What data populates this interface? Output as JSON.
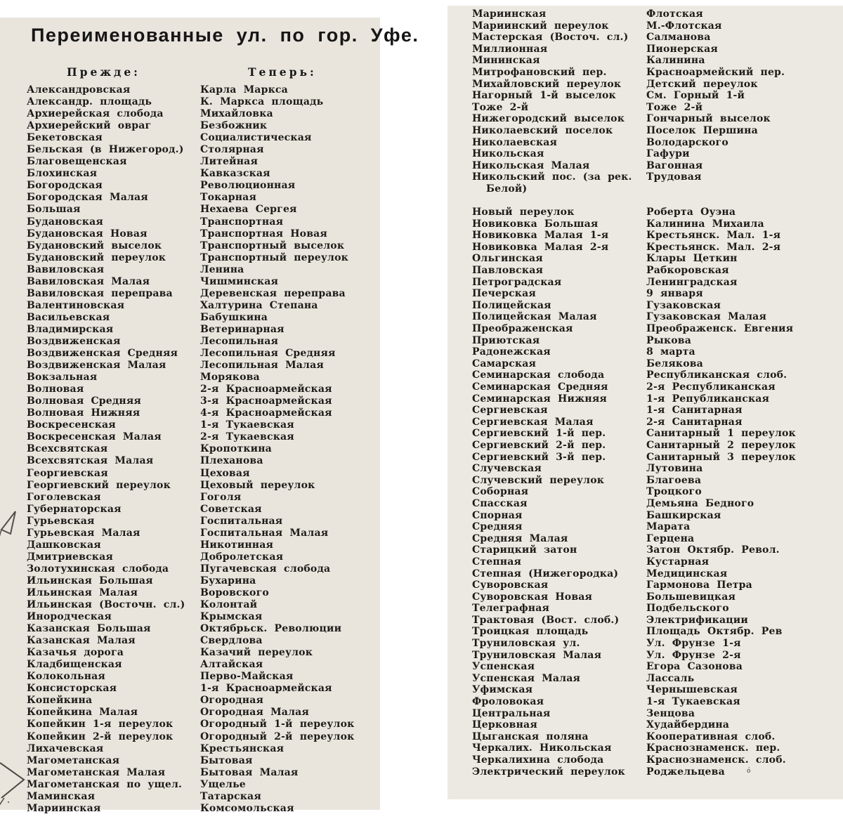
{
  "title": "Переименованные ул. по гор. Уфе.",
  "columns": {
    "before": "Прежде:",
    "after": "Теперь:"
  },
  "margin_marks": [
    "pencil-arrow-mark",
    "pencil-chevron-mark"
  ],
  "left_page_rows": [
    [
      "Александровская",
      "Карла Маркса"
    ],
    [
      "Александр. площадь",
      "К. Маркса площадь"
    ],
    [
      "Архиерейская слобода",
      "Михайловка"
    ],
    [
      "Архиерейский овраг",
      "Безбожник"
    ],
    [
      "Бекетовская",
      "Социалистическая"
    ],
    [
      "Бельская (в Нижегород.)",
      "Столярная"
    ],
    [
      "Благовещенская",
      "Литейная"
    ],
    [
      "Блохинская",
      "Кавказская"
    ],
    [
      "Богородская",
      "Революционная"
    ],
    [
      "Богородская Малая",
      "Токарная"
    ],
    [
      "Большая",
      "Нехаева Сергея"
    ],
    [
      "Будановская",
      "Транспортная"
    ],
    [
      "Будановская Новая",
      "Транспортная Новая"
    ],
    [
      "Будановский выселок",
      "Транспортный выселок"
    ],
    [
      "Будановский переулок",
      "Транспортный переулок"
    ],
    [
      "Вавиловская",
      "Ленина"
    ],
    [
      "Вавиловская Малая",
      "Чишминская"
    ],
    [
      "Вавиловская переправа",
      "Деревенская переправа"
    ],
    [
      "Валентиновская",
      "Халтурина Степана"
    ],
    [
      "Васильевская",
      "Бабушкина"
    ],
    [
      "Владимирская",
      "Ветеринарная"
    ],
    [
      "Воздвиженская",
      "Лесопильная"
    ],
    [
      "Воздвиженская Средняя",
      "Лесопильная Средняя"
    ],
    [
      "Воздвиженская Малая",
      "Лесопильная Малая"
    ],
    [
      "Вокзальная",
      "Морякова"
    ],
    [
      "Волновая",
      "2-я Красноармейская"
    ],
    [
      "Волновая Средняя",
      "3-я Красноармейская"
    ],
    [
      "Волновая Нижняя",
      "4-я Красноармейская"
    ],
    [
      "Воскресенская",
      "1-я Тукаевская"
    ],
    [
      "Воскресенская Малая",
      "2-я Тукаевская"
    ],
    [
      "Всехсвятская",
      "Кропоткина"
    ],
    [
      "Всехсвятская Малая",
      "Плеханова"
    ],
    [
      "Георгиевская",
      "Цеховая"
    ],
    [
      "Георгиевский переулок",
      "Цеховый переулок"
    ],
    [
      "Гоголевская",
      "Гоголя"
    ],
    [
      "Губернаторская",
      "Советская"
    ],
    [
      "Гурьевская",
      "Госпитальная"
    ],
    [
      "Гурьевская Малая",
      "Госпитальная Малая"
    ],
    [
      "Дашковская",
      "Никотинная"
    ],
    [
      "Дмитриевская",
      "Добролетская"
    ],
    [
      "Золотухинская слобода",
      "Пугачевская слобода"
    ],
    [
      "Ильинская Большая",
      "Бухарина"
    ],
    [
      "Ильинская Малая",
      "Воровского"
    ],
    [
      "Ильинская (Восточн. сл.)",
      "Колонтай"
    ],
    [
      "Инородческая",
      "Крымская"
    ],
    [
      "Казанская Большая",
      "Октябрьск. Революции"
    ],
    [
      "Казанская Малая",
      "Свердлова"
    ],
    [
      "Казачья дорога",
      "Казачий переулок"
    ],
    [
      "Кладбищенская",
      "Алтайская"
    ],
    [
      "Колокольная",
      "Перво-Майская"
    ],
    [
      "Консисторская",
      "1-я Красноармейская"
    ],
    [
      "Копейкина",
      "Огородная"
    ],
    [
      "Копейкина Малая",
      "Огородная Малая"
    ],
    [
      "Копейкин 1-я переулок",
      "Огородный 1-й переулок"
    ],
    [
      "Копейкин 2-й переулок",
      "Огородный 2-й переулок"
    ],
    [
      "Лихачевская",
      "Крестьянская"
    ],
    [
      "Магометанская",
      "Бытовая"
    ],
    [
      "Магометанская Малая",
      "Бытовая Малая"
    ],
    [
      "Магометанская по ущел.",
      "Ущелье"
    ],
    [
      "Маминская",
      "Татарская"
    ],
    [
      "Мариинская",
      "Комсомольская"
    ]
  ],
  "right_page_rows": [
    [
      "Мариинская",
      "Флотская"
    ],
    [
      "Мариинский переулок",
      "М.-Флотская"
    ],
    [
      "Мастерская (Восточ. сл.)",
      "Салманова"
    ],
    [
      "Миллионная",
      "Пионерская"
    ],
    [
      "Мининская",
      "Калинина"
    ],
    [
      "Митрофановский пер.",
      "Красноармейский пер."
    ],
    [
      "Михайловский переулок",
      "Детский переулок"
    ],
    [
      "Нагорный 1-й выселок",
      "См. Горный 1-й"
    ],
    [
      "Тоже 2-й",
      "Тоже 2-й"
    ],
    [
      "Нижегородский выселок",
      "Гончарный выселок"
    ],
    [
      "Николаевский поселок",
      "Поселок Першина"
    ],
    [
      "Николаевская",
      "Володарского"
    ],
    [
      "Никольская",
      "Гафури"
    ],
    [
      "Никольская Малая",
      "Вагонная"
    ],
    [
      "Никольский пос. (за рек.",
      "Трудовая"
    ],
    [
      "Белой)",
      "",
      "indent"
    ],
    [
      "",
      "",
      "spacer"
    ],
    [
      "Новый переулок",
      "Роберта Оуэна"
    ],
    [
      "Новиковка Большая",
      "Калинина Михаила"
    ],
    [
      "Новиковка Малая 1-я",
      "Крестьянск. Мал. 1-я"
    ],
    [
      "Новиковка Малая 2-я",
      "Крестьянск. Мал. 2-я"
    ],
    [
      "Ольгинская",
      "Клары Цеткин"
    ],
    [
      "Павловская",
      "Рабкоровская"
    ],
    [
      "Петроградская",
      "Ленинградская"
    ],
    [
      "Печерская",
      "9 января"
    ],
    [
      "Полицейская",
      "Гузаковская"
    ],
    [
      "Полицейская Малая",
      "Гузаковская Малая"
    ],
    [
      "Преображенская",
      "Преображенск. Евгения"
    ],
    [
      "Приютская",
      "Рыкова"
    ],
    [
      "Радонежская",
      "8 марта"
    ],
    [
      "Самарская",
      "Белякова"
    ],
    [
      "Семинарская слобода",
      "Республиканская слоб."
    ],
    [
      "Семинарская Средняя",
      "2-я Республиканская"
    ],
    [
      "Семинарская Нижняя",
      "1-я Републиканская"
    ],
    [
      "Сергиевская",
      "1-я Санитарная"
    ],
    [
      "Сергиевская Малая",
      "2-я Санитарная"
    ],
    [
      "Сергиевский 1-й пер.",
      "Санитарный 1 переулок"
    ],
    [
      "Сергиевский 2-й пер.",
      "Санитарный 2 переулок"
    ],
    [
      "Сергиевский 3-й пер.",
      "Санитарный 3 переулок"
    ],
    [
      "Случевская",
      "Лутовина"
    ],
    [
      "Случевский переулок",
      "Благоева"
    ],
    [
      "Соборная",
      "Троцкого"
    ],
    [
      "Спасская",
      "Демьяна Бедного"
    ],
    [
      "Спорная",
      "Башкирская"
    ],
    [
      "Средняя",
      "Марата"
    ],
    [
      "Средняя Малая",
      "Герцена"
    ],
    [
      "Старицкий затон",
      "Затон Октябр. Револ."
    ],
    [
      "Степная",
      "Кустарная"
    ],
    [
      "Степная (Нижегородка)",
      "Медицинская"
    ],
    [
      "Суворовская",
      "Гармонова Петра"
    ],
    [
      "Суворовская Новая",
      "Большевицкая"
    ],
    [
      "Телеграфная",
      "Подбельского"
    ],
    [
      "Трактовая (Вост. слоб.)",
      "Электрификации"
    ],
    [
      "Троицкая площадь",
      "Площадь Октябр. Рев"
    ],
    [
      "Труниловская ул.",
      "Ул. Фрунзе 1-я"
    ],
    [
      "Труниловская Малая",
      "Ул. Фрунзе 2-я"
    ],
    [
      "Успенская",
      "Егора Сазонова"
    ],
    [
      "Успенская Малая",
      "Лассаль"
    ],
    [
      "Уфимская",
      "Чернышевская"
    ],
    [
      "Фроловокая",
      "1-я Тукаевская"
    ],
    [
      "Центральная",
      "Зенцова"
    ],
    [
      "Церковная",
      "Худайбердина"
    ],
    [
      "Цыганская поляна",
      "Кооперативная слоб."
    ],
    [
      "Черкалих. Никольская",
      "Краснознаменск. пер."
    ],
    [
      "Черкалихина слобода",
      "Краснознаменск. слоб."
    ],
    [
      "Электрический переулок",
      "Роджельцева"
    ]
  ]
}
